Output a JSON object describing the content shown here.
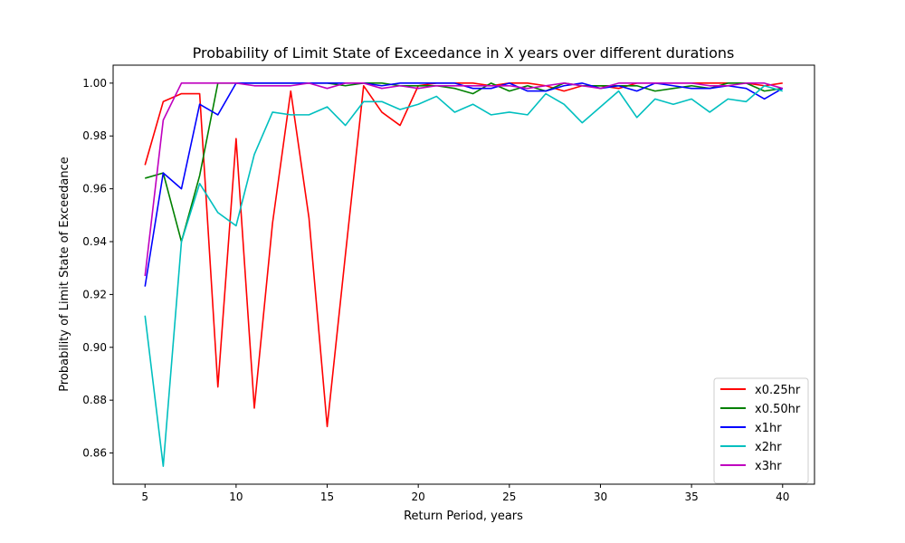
{
  "chart_data": {
    "type": "line",
    "title": "Probability of Limit State of Exceedance in X years over different durations",
    "xlabel": "Return Period, years",
    "ylabel": "Probability of Limit State of Exceedance",
    "xlim": [
      3.25,
      41.75
    ],
    "ylim": [
      0.8482,
      1.0068
    ],
    "xticks": [
      5,
      10,
      15,
      20,
      25,
      30,
      35,
      40
    ],
    "xtick_labels": [
      "5",
      "10",
      "15",
      "20",
      "25",
      "30",
      "35",
      "40"
    ],
    "yticks": [
      0.86,
      0.88,
      0.9,
      0.92,
      0.94,
      0.96,
      0.98,
      1.0
    ],
    "ytick_labels": [
      "0.86",
      "0.88",
      "0.90",
      "0.92",
      "0.94",
      "0.96",
      "0.98",
      "1.00"
    ],
    "grid": false,
    "legend_position": "lower-right",
    "x": [
      5,
      6,
      7,
      8,
      9,
      10,
      11,
      12,
      13,
      14,
      15,
      16,
      17,
      18,
      19,
      20,
      21,
      22,
      23,
      24,
      25,
      26,
      27,
      28,
      29,
      30,
      31,
      32,
      33,
      34,
      35,
      36,
      37,
      38,
      39,
      40
    ],
    "series": [
      {
        "name": "x0.25hr",
        "color": "#ff0000",
        "values": [
          0.969,
          0.993,
          0.996,
          0.996,
          0.885,
          0.979,
          0.877,
          0.947,
          0.997,
          0.949,
          0.87,
          0.935,
          0.999,
          0.989,
          0.984,
          0.999,
          1.0,
          1.0,
          1.0,
          0.999,
          1.0,
          1.0,
          0.999,
          0.997,
          0.999,
          0.999,
          0.998,
          1.0,
          1.0,
          1.0,
          1.0,
          1.0,
          1.0,
          1.0,
          0.999,
          1.0
        ]
      },
      {
        "name": "x0.50hr",
        "color": "#008000",
        "values": [
          0.964,
          0.966,
          0.94,
          0.965,
          1.0,
          1.0,
          1.0,
          1.0,
          1.0,
          1.0,
          1.0,
          0.999,
          1.0,
          1.0,
          0.999,
          0.999,
          0.999,
          0.998,
          0.996,
          1.0,
          0.997,
          0.999,
          0.997,
          1.0,
          0.999,
          0.999,
          0.999,
          0.999,
          0.997,
          0.998,
          0.999,
          0.998,
          1.0,
          1.0,
          0.997,
          0.998
        ]
      },
      {
        "name": "x1hr",
        "color": "#0000ff",
        "values": [
          0.923,
          0.966,
          0.96,
          0.992,
          0.988,
          1.0,
          1.0,
          1.0,
          1.0,
          1.0,
          1.0,
          1.0,
          1.0,
          0.999,
          1.0,
          1.0,
          1.0,
          1.0,
          0.998,
          0.998,
          1.0,
          0.997,
          0.997,
          0.999,
          1.0,
          0.998,
          0.999,
          0.997,
          1.0,
          0.999,
          0.998,
          0.998,
          0.999,
          0.998,
          0.994,
          0.998
        ]
      },
      {
        "name": "x2hr",
        "color": "#00bfbf",
        "values": [
          0.912,
          0.855,
          0.94,
          0.962,
          0.951,
          0.946,
          0.973,
          0.989,
          0.988,
          0.988,
          0.991,
          0.984,
          0.993,
          0.993,
          0.99,
          0.992,
          0.995,
          0.989,
          0.992,
          0.988,
          0.989,
          0.988,
          0.996,
          0.992,
          0.985,
          0.991,
          0.997,
          0.987,
          0.994,
          0.992,
          0.994,
          0.989,
          0.994,
          0.993,
          0.999,
          0.997
        ]
      },
      {
        "name": "x3hr",
        "color": "#bf00bf",
        "values": [
          0.927,
          0.986,
          1.0,
          1.0,
          1.0,
          1.0,
          0.999,
          0.999,
          0.999,
          1.0,
          0.998,
          1.0,
          1.0,
          0.998,
          0.999,
          0.998,
          0.999,
          0.999,
          0.999,
          0.999,
          0.999,
          0.998,
          0.999,
          1.0,
          0.999,
          0.998,
          1.0,
          1.0,
          1.0,
          1.0,
          1.0,
          0.999,
          0.999,
          1.0,
          1.0,
          0.998
        ]
      }
    ]
  }
}
